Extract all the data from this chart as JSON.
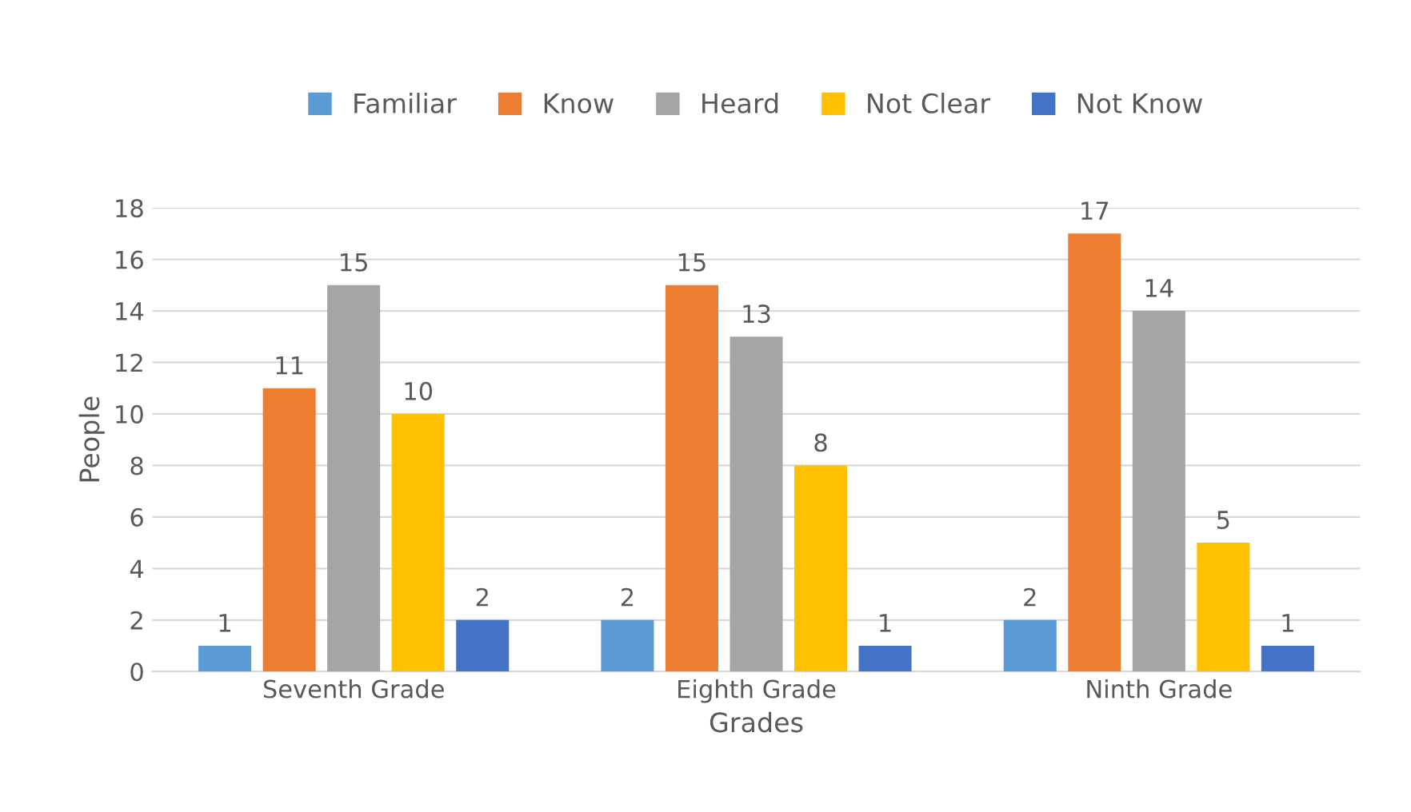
{
  "chart_data": {
    "type": "bar",
    "xlabel": "Grades",
    "ylabel": "People",
    "categories": [
      "Seventh Grade",
      "Eighth Grade",
      "Ninth Grade"
    ],
    "series": [
      {
        "name": "Familiar",
        "color": "#5b9bd5",
        "values": [
          1,
          2,
          2
        ]
      },
      {
        "name": "Know",
        "color": "#ed7d31",
        "values": [
          11,
          15,
          17
        ]
      },
      {
        "name": "Heard",
        "color": "#a5a5a5",
        "values": [
          15,
          13,
          14
        ]
      },
      {
        "name": "Not Clear",
        "color": "#ffc000",
        "values": [
          10,
          8,
          5
        ]
      },
      {
        "name": "Not Know",
        "color": "#4472c4",
        "values": [
          2,
          1,
          1
        ]
      }
    ],
    "ylim": [
      0,
      18
    ],
    "yticks": [
      0,
      2,
      4,
      6,
      8,
      10,
      12,
      14,
      16,
      18
    ],
    "grid": "y",
    "legend": "top",
    "data_labels": true
  }
}
